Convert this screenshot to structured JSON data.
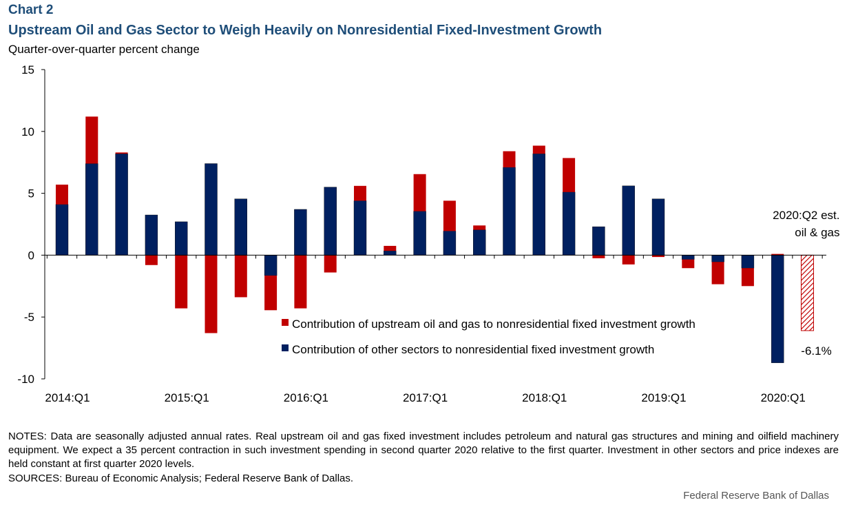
{
  "chart_label": "Chart 2",
  "chart_data": {
    "type": "bar",
    "stacked": true,
    "title": "Upstream Oil and Gas Sector to Weigh Heavily on Nonresidential Fixed-Investment Growth",
    "subtitle": "Quarter-over-quarter percent change",
    "ylim": [
      -10,
      15
    ],
    "yticks": [
      -10,
      -5,
      0,
      5,
      10,
      15
    ],
    "xtick_labels": [
      "2014:Q1",
      "2015:Q1",
      "2016:Q1",
      "2017:Q1",
      "2018:Q1",
      "2019:Q1",
      "2020:Q1"
    ],
    "categories": [
      "2014:Q1",
      "2014:Q2",
      "2014:Q3",
      "2014:Q4",
      "2015:Q1",
      "2015:Q2",
      "2015:Q3",
      "2015:Q4",
      "2016:Q1",
      "2016:Q2",
      "2016:Q3",
      "2016:Q4",
      "2017:Q1",
      "2017:Q2",
      "2017:Q3",
      "2017:Q4",
      "2018:Q1",
      "2018:Q2",
      "2018:Q3",
      "2018:Q4",
      "2019:Q1",
      "2019:Q2",
      "2019:Q3",
      "2019:Q4",
      "2020:Q1",
      "2020:Q2"
    ],
    "series": [
      {
        "name": "Contribution of other sectors to nonresidential fixed investment growth",
        "color": "#002060",
        "values": [
          4.1,
          7.4,
          8.2,
          3.25,
          2.7,
          7.4,
          4.55,
          -1.65,
          3.7,
          5.5,
          4.4,
          0.35,
          3.55,
          1.95,
          2.05,
          7.1,
          8.2,
          5.1,
          2.3,
          5.6,
          4.55,
          -0.35,
          -0.55,
          -1.05,
          -8.7,
          0
        ]
      },
      {
        "name": "Contribution of upstream oil and gas to nonresidential fixed investment growth",
        "color": "#c00000",
        "values": [
          1.6,
          3.8,
          0.1,
          -0.8,
          -4.3,
          -6.3,
          -3.4,
          -2.8,
          -4.3,
          -1.4,
          1.2,
          0.4,
          3.0,
          2.45,
          0.35,
          1.3,
          0.65,
          2.75,
          -0.25,
          -0.75,
          -0.15,
          -0.7,
          -1.8,
          -1.45,
          0.1,
          -6.1
        ]
      }
    ],
    "estimate": {
      "category": "2020:Q2",
      "label_line1": "2020:Q2 est.",
      "label_line2": "oil & gas",
      "value_label": "-6.1%",
      "value": -6.1
    },
    "legend": {
      "placement": "bottom-center"
    }
  },
  "notes": "NOTES: Data are seasonally adjusted annual rates. Real upstream oil and gas fixed investment includes petroleum and natural gas structures and mining and oilfield machinery equipment. We expect a 35 percent contraction in such investment spending in second quarter 2020 relative to the first quarter. Investment in other sectors and price indexes are held constant at first quarter 2020 levels.",
  "sources": "SOURCES: Bureau of Economic Analysis; Federal Reserve Bank of Dallas.",
  "footer": "Federal Reserve Bank of Dallas"
}
